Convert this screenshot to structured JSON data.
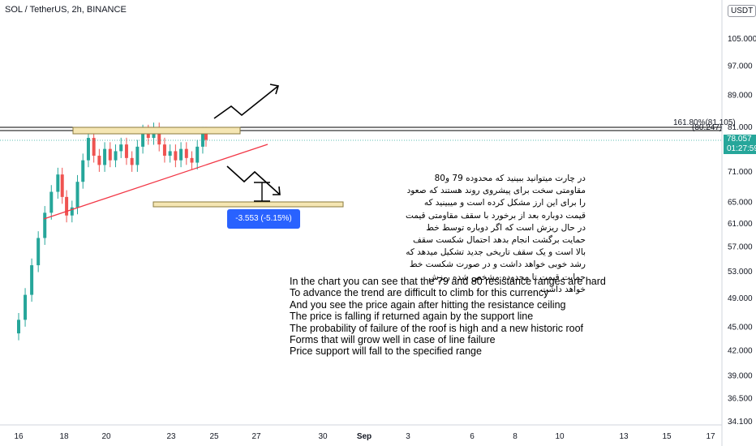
{
  "header": {
    "title": "SOL / TetherUS, 2h, BINANCE",
    "currency": "USDT"
  },
  "chart_data": {
    "type": "candlestick",
    "symbol": "SOL / TetherUS",
    "interval": "2h",
    "exchange": "BINANCE",
    "y_scale": "log",
    "ylim": [
      34.1,
      110
    ],
    "y_ticks": [
      "105.000",
      "97.000",
      "89.000",
      "81.000",
      "71.000",
      "65.000",
      "61.000",
      "57.000",
      "53.000",
      "49.000",
      "45.000",
      "42.000",
      "39.000",
      "36.500",
      "34.100"
    ],
    "x_ticks": [
      "16",
      "18",
      "20",
      "23",
      "25",
      "27",
      "30",
      "Sep",
      "3",
      "6",
      "8",
      "10",
      "13",
      "15",
      "17"
    ],
    "last_price": "78.057",
    "countdown": "01:27:59",
    "candles": [
      {
        "x": 16.0,
        "o": 44.2,
        "c": 46.0
      },
      {
        "x": 16.3,
        "o": 46.0,
        "c": 49.5
      },
      {
        "x": 16.6,
        "o": 49.5,
        "c": 54.0
      },
      {
        "x": 16.9,
        "o": 54.0,
        "c": 58.5
      },
      {
        "x": 17.2,
        "o": 58.5,
        "c": 63.0
      },
      {
        "x": 17.5,
        "o": 63.0,
        "c": 67.0
      },
      {
        "x": 17.8,
        "o": 67.0,
        "c": 70.5
      },
      {
        "x": 18.0,
        "o": 70.5,
        "c": 66.0
      },
      {
        "x": 18.2,
        "o": 66.0,
        "c": 62.5
      },
      {
        "x": 18.45,
        "o": 62.5,
        "c": 64.0
      },
      {
        "x": 18.7,
        "o": 64.0,
        "c": 69.0
      },
      {
        "x": 18.95,
        "o": 69.0,
        "c": 73.5
      },
      {
        "x": 19.2,
        "o": 73.5,
        "c": 78.5
      },
      {
        "x": 19.45,
        "o": 78.5,
        "c": 74.5
      },
      {
        "x": 19.7,
        "o": 74.5,
        "c": 72.5
      },
      {
        "x": 19.95,
        "o": 72.5,
        "c": 76.0
      },
      {
        "x": 20.2,
        "o": 76.0,
        "c": 73.5
      },
      {
        "x": 20.45,
        "o": 73.5,
        "c": 75.5
      },
      {
        "x": 20.7,
        "o": 75.5,
        "c": 77.0
      },
      {
        "x": 20.95,
        "o": 77.0,
        "c": 74.0
      },
      {
        "x": 21.2,
        "o": 74.0,
        "c": 72.5
      },
      {
        "x": 21.45,
        "o": 72.5,
        "c": 76.5
      },
      {
        "x": 21.7,
        "o": 76.5,
        "c": 80.0
      },
      {
        "x": 21.95,
        "o": 80.0,
        "c": 78.5
      },
      {
        "x": 22.2,
        "o": 78.5,
        "c": 80.5
      },
      {
        "x": 22.45,
        "o": 80.5,
        "c": 77.0
      },
      {
        "x": 22.7,
        "o": 77.0,
        "c": 74.5
      },
      {
        "x": 22.95,
        "o": 74.5,
        "c": 75.5
      },
      {
        "x": 23.2,
        "o": 75.5,
        "c": 73.5
      },
      {
        "x": 23.45,
        "o": 73.5,
        "c": 76.0
      },
      {
        "x": 23.7,
        "o": 76.0,
        "c": 74.0
      },
      {
        "x": 23.95,
        "o": 74.0,
        "c": 73.0
      },
      {
        "x": 24.2,
        "o": 73.0,
        "c": 76.5
      },
      {
        "x": 24.45,
        "o": 76.5,
        "c": 79.5
      },
      {
        "x": 24.6,
        "o": 79.5,
        "c": 78.06
      }
    ]
  },
  "annotations": {
    "fib_label": "161.80%(81.105)",
    "level_label": "(80.247)",
    "measure_label": "-3.553 (-5.15%) -3553",
    "persian_note": "در چارت میتوانید ببینید که محدوده 79 و80 مقاومتی سخت برای پیشروی روند هستند که صعود را برای این ارز مشکل کرده است و میبینید که قیمت دوباره بعد از برخورد با سقف مقاومتی قیمت در حال ریزش است که اگر دوباره توسط خط حمایت برگشت انجام بدهد احتمال شکست سقف بالا است و یک سقف تاریخی جدید تشکیل میدهد که رشد خوبی خواهد داشت و در صورت شکست خط حمایت قیمت تا محدوده مشخص شده ریزش خواهد داشت",
    "english_note": [
      "In the chart you can see that the 79 and 80 resistance ranges are hard",
      "To advance the trend are difficult to climb for this currency",
      "And you see the price again after hitting the resistance ceiling",
      "The price is falling if returned again by the support line",
      "The probability of failure of the roof is high and a new historic roof",
      "Forms that will grow well in case of line failure",
      "Price support will fall to the specified range"
    ]
  },
  "colors": {
    "up": "#26a69a",
    "down": "#ef5350",
    "trendline": "#f23645",
    "zone": "#f5e6b3",
    "measure": "#2962ff"
  }
}
